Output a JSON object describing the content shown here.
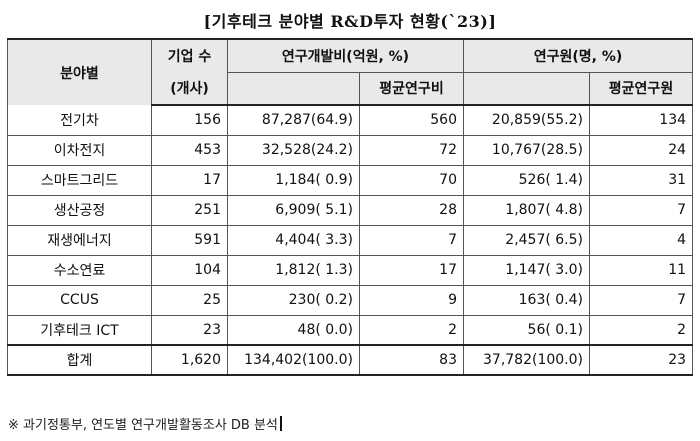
{
  "title": "[기후테크 분야별 R&D투자 현황(`23)]",
  "header": {
    "field": "분야별",
    "companies_line1": "기업 수",
    "companies_line2": "(개사)",
    "rd_expense": "연구개발비(억원, %)",
    "rd_expense_avg": "평균연구비",
    "researchers": "연구원(명, %)",
    "researchers_avg": "평균연구원"
  },
  "rows": [
    {
      "field": "전기차",
      "companies": "156",
      "rd_expense": "87,287(64.9)",
      "avg_expense": "560",
      "researchers": "20,859(55.2)",
      "avg_researchers": "134"
    },
    {
      "field": "이차전지",
      "companies": "453",
      "rd_expense": "32,528(24.2)",
      "avg_expense": "72",
      "researchers": "10,767(28.5)",
      "avg_researchers": "24"
    },
    {
      "field": "스마트그리드",
      "companies": "17",
      "rd_expense": "1,184( 0.9)",
      "avg_expense": "70",
      "researchers": "526( 1.4)",
      "avg_researchers": "31"
    },
    {
      "field": "생산공정",
      "companies": "251",
      "rd_expense": "6,909( 5.1)",
      "avg_expense": "28",
      "researchers": "1,807( 4.8)",
      "avg_researchers": "7"
    },
    {
      "field": "재생에너지",
      "companies": "591",
      "rd_expense": "4,404( 3.3)",
      "avg_expense": "7",
      "researchers": "2,457( 6.5)",
      "avg_researchers": "4"
    },
    {
      "field": "수소연료",
      "companies": "104",
      "rd_expense": "1,812( 1.3)",
      "avg_expense": "17",
      "researchers": "1,147( 3.0)",
      "avg_researchers": "11"
    },
    {
      "field": "CCUS",
      "companies": "25",
      "rd_expense": "230( 0.2)",
      "avg_expense": "9",
      "researchers": "163( 0.4)",
      "avg_researchers": "7"
    },
    {
      "field": "기후테크 ICT",
      "companies": "23",
      "rd_expense": "48( 0.0)",
      "avg_expense": "2",
      "researchers": "56( 0.1)",
      "avg_researchers": "2"
    }
  ],
  "total": {
    "field": "합계",
    "companies": "1,620",
    "rd_expense": "134,402(100.0)",
    "avg_expense": "83",
    "researchers": "37,782(100.0)",
    "avg_researchers": "23"
  },
  "note": "※ 과기정통부, 연도별 연구개발활동조사 DB 분석"
}
